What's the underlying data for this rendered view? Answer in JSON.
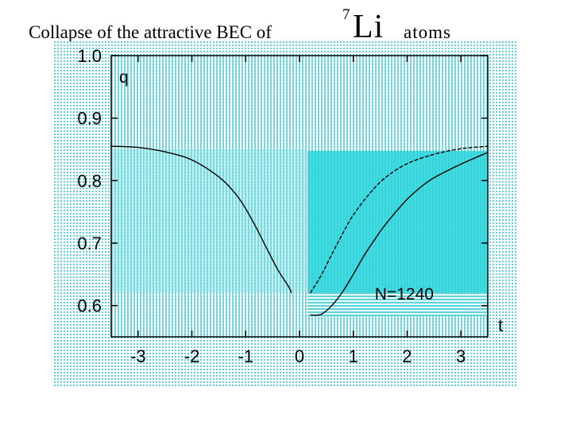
{
  "title": {
    "prefix": "Collapse of the attractive BEC of",
    "isotope_mass": "7",
    "isotope_element": "Li",
    "suffix": "atoms"
  },
  "colors": {
    "hatch": "#2ec8d0",
    "panel": "#27d3da",
    "curve": "#000000"
  },
  "chart_data": {
    "type": "line",
    "title": "Collapse of the attractive BEC of 7Li atoms",
    "xlabel": "t",
    "ylabel": "q",
    "xlim": [
      -3.5,
      3.5
    ],
    "ylim": [
      0.55,
      1.0
    ],
    "x_ticks": [
      -3,
      -2,
      -1,
      0,
      1,
      2,
      3
    ],
    "x_tick_labels": [
      "-3",
      "-2",
      "-1",
      "0",
      "1",
      "2",
      "3"
    ],
    "y_ticks": [
      0.6,
      0.7,
      0.8,
      0.9,
      1.0
    ],
    "y_tick_labels": [
      "0.6",
      "0.7",
      "0.8",
      "0.9",
      "1.0"
    ],
    "grid": false,
    "annotations": [
      {
        "text": "N=1240",
        "x": 1.4,
        "y": 0.61
      }
    ],
    "series": [
      {
        "style": "solid",
        "x": [
          -3.5,
          -3.0,
          -2.5,
          -2.0,
          -1.5,
          -1.2,
          -1.0,
          -0.8,
          -0.6,
          -0.4,
          -0.2,
          -0.15
        ],
        "y": [
          0.855,
          0.853,
          0.846,
          0.833,
          0.806,
          0.78,
          0.755,
          0.724,
          0.69,
          0.657,
          0.63,
          0.62
        ]
      },
      {
        "style": "dashed",
        "x": [
          0.2,
          0.4,
          0.6,
          0.8,
          1.0,
          1.3,
          1.6,
          2.0,
          2.5,
          3.0,
          3.5
        ],
        "y": [
          0.62,
          0.648,
          0.682,
          0.715,
          0.745,
          0.779,
          0.805,
          0.827,
          0.842,
          0.851,
          0.855
        ]
      },
      {
        "style": "solid",
        "x": [
          0.2,
          0.4,
          0.6,
          0.8,
          1.0,
          1.2,
          1.4,
          1.6,
          2.0,
          2.4,
          2.8,
          3.2,
          3.5
        ],
        "y": [
          0.585,
          0.586,
          0.6,
          0.622,
          0.65,
          0.68,
          0.706,
          0.73,
          0.77,
          0.799,
          0.818,
          0.834,
          0.845
        ]
      }
    ]
  }
}
